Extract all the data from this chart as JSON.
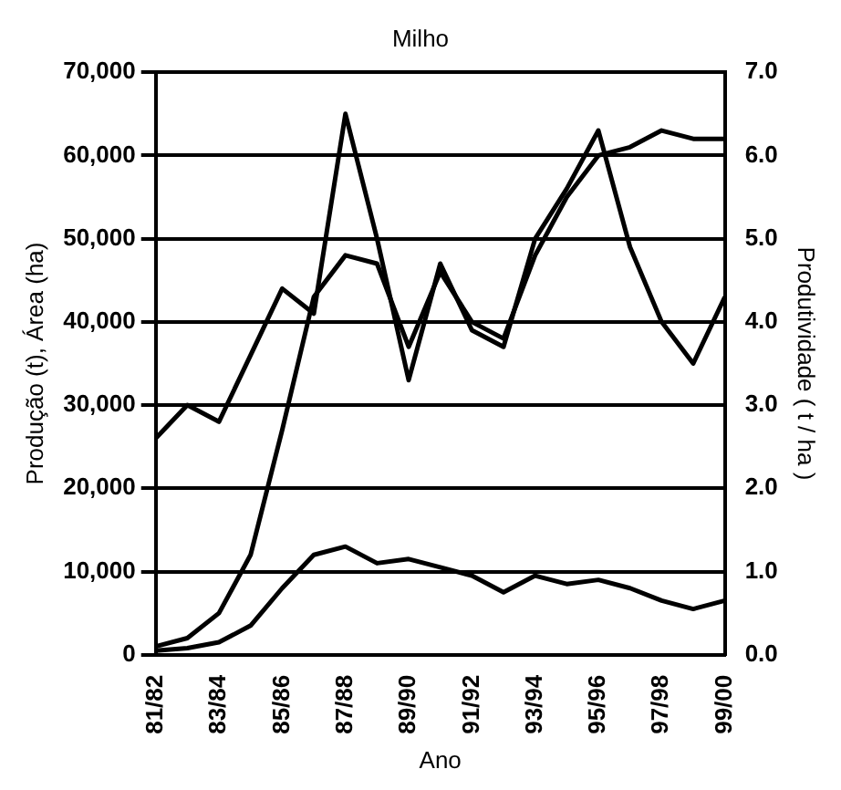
{
  "chart_data": {
    "type": "line",
    "title": "Milho",
    "xlabel": "Ano",
    "ylabel": "Produção (t), Área (ha)",
    "y2label": "Produtividade ( t / ha )",
    "categories": [
      "81/82",
      null,
      "83/84",
      null,
      "85/86",
      null,
      "87/88",
      null,
      "89/90",
      null,
      "91/92",
      null,
      "93/94",
      null,
      "95/96",
      null,
      "97/98",
      null,
      "99/00"
    ],
    "series": [
      {
        "color": "#000000",
        "values": [
          1000,
          2000,
          5000,
          12000,
          27000,
          43000,
          48000,
          47000,
          37000,
          46000,
          40000,
          38000,
          48000,
          55000,
          60000,
          61000,
          63000,
          62000,
          62000
        ]
      },
      {
        "color": "#000000",
        "values": [
          500,
          800,
          1500,
          3500,
          8000,
          12000,
          13000,
          11000,
          11500,
          10500,
          9500,
          7500,
          9500,
          8500,
          9000,
          8000,
          6500,
          5500,
          6500
        ]
      },
      {
        "color": "#000000",
        "axis": "y2",
        "values": [
          2.6,
          3.0,
          2.8,
          3.6,
          4.4,
          4.1,
          6.5,
          5.0,
          3.3,
          4.7,
          3.9,
          3.7,
          5.0,
          5.6,
          6.3,
          4.9,
          4.0,
          3.5,
          4.3
        ]
      }
    ],
    "ylim": [
      0,
      70000
    ],
    "yticks": [
      0,
      {
        "value": 10000,
        "label": "10,000"
      },
      {
        "value": 20000,
        "label": "20,000"
      },
      {
        "value": 30000,
        "label": "30,000"
      },
      {
        "value": 40000,
        "label": "40,000"
      },
      {
        "value": 50000,
        "label": "50,000"
      },
      {
        "value": 60000,
        "label": "60,000"
      },
      {
        "value": 70000,
        "label": "70,000"
      }
    ],
    "y2lim": [
      0,
      7
    ],
    "y2ticks": [
      {
        "value": 0,
        "label": "0.0"
      },
      {
        "value": 1,
        "label": "1.0"
      },
      {
        "value": 2,
        "label": "2.0"
      },
      {
        "value": 3,
        "label": "3.0"
      },
      {
        "value": 4,
        "label": "4.0"
      },
      {
        "value": 5,
        "label": "5.0"
      },
      {
        "value": 6,
        "label": "6.0"
      },
      {
        "value": 7,
        "label": "7.0"
      }
    ],
    "grid": "y",
    "legend": false,
    "marker": "none",
    "line_style": "solid"
  }
}
